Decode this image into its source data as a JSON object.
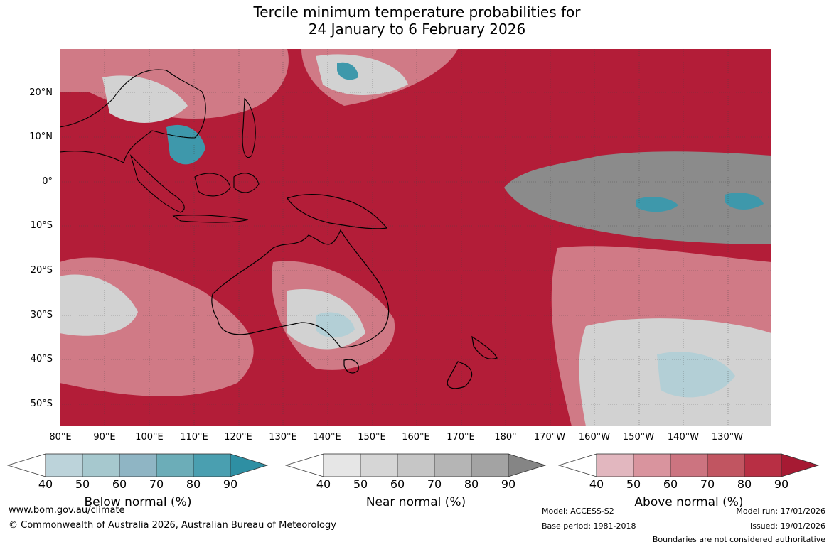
{
  "title": {
    "line1": "Tercile minimum temperature probabilities for",
    "line2": "24 January to 6 February 2026"
  },
  "map": {
    "lat_labels": [
      "20°N",
      "10°N",
      "0°",
      "10°S",
      "20°S",
      "30°S",
      "40°S",
      "50°S"
    ],
    "lon_labels": [
      "80°E",
      "90°E",
      "100°E",
      "110°E",
      "120°E",
      "130°E",
      "140°E",
      "150°E",
      "160°E",
      "170°E",
      "180°",
      "170°W",
      "160°W",
      "150°W",
      "140°W",
      "130°W"
    ],
    "colors": {
      "above": "#b31d38",
      "above_light": "#d07a86",
      "near": "#8b8b8b",
      "below": "#3e98ab",
      "land_outline": "#000000"
    }
  },
  "colorbars": [
    {
      "name": "below",
      "title": "Below normal (%)",
      "ticks": [
        "40",
        "50",
        "60",
        "70",
        "80",
        "90"
      ],
      "colors": [
        "#ffffff",
        "#bcd3da",
        "#a6c8ce",
        "#8fb5c4",
        "#6cadb8",
        "#4a9fb0",
        "#2e8fa3"
      ]
    },
    {
      "name": "near",
      "title": "Near normal (%)",
      "ticks": [
        "40",
        "50",
        "60",
        "70",
        "80",
        "90"
      ],
      "colors": [
        "#ffffff",
        "#e6e6e6",
        "#d6d6d6",
        "#c6c6c6",
        "#b5b5b5",
        "#a3a3a3",
        "#858585"
      ]
    },
    {
      "name": "above",
      "title": "Above normal (%)",
      "ticks": [
        "40",
        "50",
        "60",
        "70",
        "80",
        "90"
      ],
      "colors": [
        "#ffffff",
        "#e2b7bf",
        "#d9949e",
        "#cc7480",
        "#c15561",
        "#b82f44",
        "#a61a33"
      ]
    }
  ],
  "footer": {
    "url": "www.bom.gov.au/climate",
    "copyright": "© Commonwealth of Australia 2026, Australian Bureau of Meteorology",
    "model": "Model: ACCESS-S2",
    "base_period": "Base period: 1981-2018",
    "model_run": "Model run: 17/01/2026",
    "issued": "Issued: 19/01/2026",
    "disclaimer": "Boundaries are not considered authoritative"
  }
}
